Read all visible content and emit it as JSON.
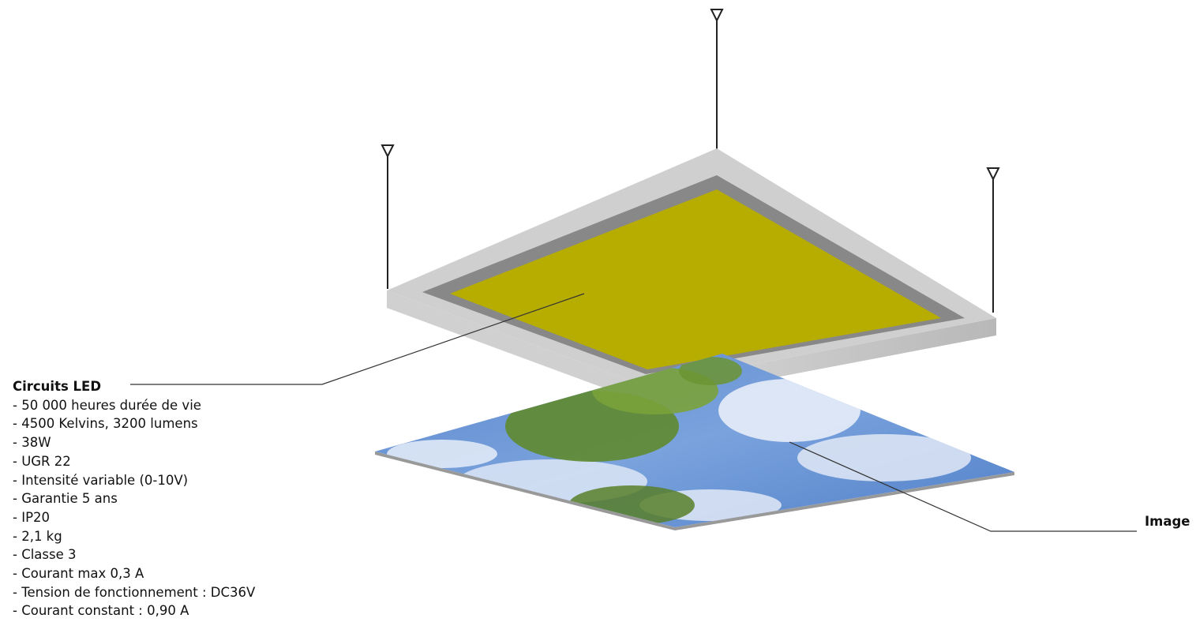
{
  "led_callout": {
    "title": "Circuits LED",
    "specs": [
      "- 50 000 heures durée de vie",
      "- 4500 Kelvins, 3200 lumens",
      "- 38W",
      "- UGR 22",
      "- Intensité variable (0-10V)",
      "- Garantie 5 ans",
      "- IP20",
      "- 2,1 kg",
      "- Classe 3",
      "- Courant max 0,3 A",
      "- Tension de fonctionnement : DC36V",
      "- Courant constant : 0,90 A"
    ]
  },
  "image_callout": {
    "title": "Image"
  }
}
